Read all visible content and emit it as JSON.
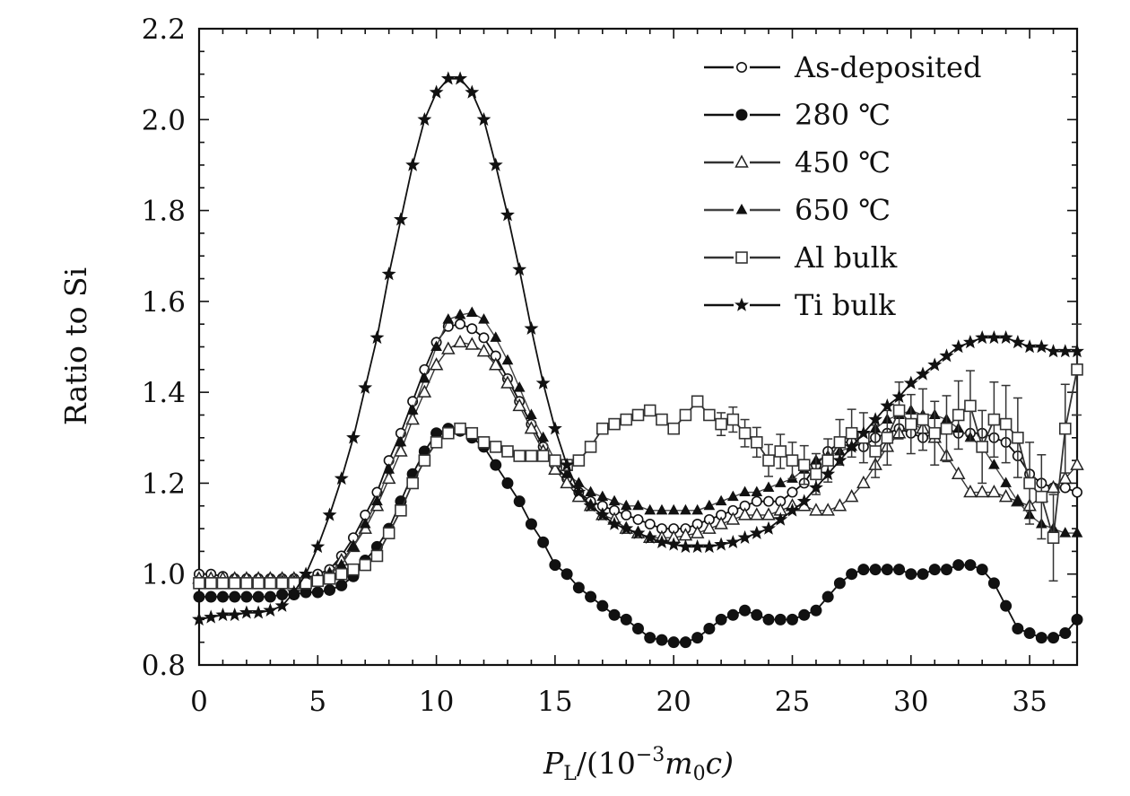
{
  "chart_data": {
    "type": "line",
    "title": "",
    "xlabel": "P_L/(10^-3 m0 c)",
    "xlabel_parts": {
      "main": "P",
      "sub": "L",
      "mid": "/(10",
      "sup": "−3",
      "var": "m",
      "sub2": "0",
      "tail": "c)"
    },
    "ylabel": "Ratio to Si",
    "xlim": [
      0,
      37
    ],
    "ylim": [
      0.8,
      2.2
    ],
    "xticks": [
      0,
      5,
      10,
      15,
      20,
      25,
      30,
      35
    ],
    "yticks": [
      "0.8",
      "1.0",
      "1.2",
      "1.4",
      "1.6",
      "1.8",
      "2.0",
      "2.2"
    ],
    "grid": false,
    "legend_position": "top-right",
    "series": [
      {
        "name": "As-deposited",
        "marker": "circle-open",
        "x": [
          0,
          0.5,
          1,
          1.5,
          2,
          2.5,
          3,
          3.5,
          4,
          4.5,
          5,
          5.5,
          6,
          6.5,
          7,
          7.5,
          8,
          8.5,
          9,
          9.5,
          10,
          10.5,
          11,
          11.5,
          12,
          12.5,
          13,
          13.5,
          14,
          14.5,
          15,
          15.5,
          16,
          16.5,
          17,
          17.5,
          18,
          18.5,
          19,
          19.5,
          20,
          20.5,
          21,
          21.5,
          22,
          22.5,
          23,
          23.5,
          24,
          24.5,
          25,
          25.5,
          26,
          26.5,
          27,
          27.5,
          28,
          28.5,
          29,
          29.5,
          30,
          30.5,
          31,
          31.5,
          32,
          32.5,
          33,
          33.5,
          34,
          34.5,
          35,
          35.5,
          36,
          36.5,
          37
        ],
        "y": [
          1.0,
          1.0,
          0.995,
          0.99,
          0.99,
          0.99,
          0.99,
          0.99,
          0.99,
          0.99,
          1.0,
          1.01,
          1.04,
          1.08,
          1.13,
          1.18,
          1.25,
          1.31,
          1.38,
          1.45,
          1.51,
          1.545,
          1.55,
          1.54,
          1.52,
          1.48,
          1.43,
          1.38,
          1.33,
          1.28,
          1.24,
          1.21,
          1.18,
          1.16,
          1.15,
          1.14,
          1.13,
          1.12,
          1.11,
          1.1,
          1.1,
          1.1,
          1.11,
          1.12,
          1.13,
          1.14,
          1.15,
          1.16,
          1.16,
          1.16,
          1.18,
          1.2,
          1.24,
          1.27,
          1.29,
          1.29,
          1.28,
          1.3,
          1.31,
          1.32,
          1.31,
          1.3,
          1.31,
          1.32,
          1.31,
          1.31,
          1.31,
          1.3,
          1.29,
          1.26,
          1.22,
          1.2,
          1.19,
          1.19,
          1.18
        ]
      },
      {
        "name": "280 ℃",
        "marker": "circle-filled",
        "x": [
          0,
          0.5,
          1,
          1.5,
          2,
          2.5,
          3,
          3.5,
          4,
          4.5,
          5,
          5.5,
          6,
          6.5,
          7,
          7.5,
          8,
          8.5,
          9,
          9.5,
          10,
          10.5,
          11,
          11.5,
          12,
          12.5,
          13,
          13.5,
          14,
          14.5,
          15,
          15.5,
          16,
          16.5,
          17,
          17.5,
          18,
          18.5,
          19,
          19.5,
          20,
          20.5,
          21,
          21.5,
          22,
          22.5,
          23,
          23.5,
          24,
          24.5,
          25,
          25.5,
          26,
          26.5,
          27,
          27.5,
          28,
          28.5,
          29,
          29.5,
          30,
          30.5,
          31,
          31.5,
          32,
          32.5,
          33,
          33.5,
          34,
          34.5,
          35,
          35.5,
          36,
          36.5,
          37
        ],
        "y": [
          0.95,
          0.95,
          0.95,
          0.95,
          0.95,
          0.95,
          0.95,
          0.955,
          0.955,
          0.96,
          0.96,
          0.965,
          0.975,
          0.995,
          1.03,
          1.06,
          1.1,
          1.16,
          1.22,
          1.27,
          1.31,
          1.32,
          1.315,
          1.3,
          1.28,
          1.24,
          1.2,
          1.16,
          1.11,
          1.07,
          1.02,
          1.0,
          0.97,
          0.95,
          0.93,
          0.91,
          0.9,
          0.88,
          0.86,
          0.855,
          0.85,
          0.85,
          0.86,
          0.88,
          0.9,
          0.91,
          0.92,
          0.91,
          0.9,
          0.9,
          0.9,
          0.91,
          0.92,
          0.95,
          0.98,
          1.0,
          1.01,
          1.01,
          1.01,
          1.01,
          1.0,
          1.0,
          1.01,
          1.01,
          1.02,
          1.02,
          1.01,
          0.98,
          0.93,
          0.88,
          0.87,
          0.86,
          0.86,
          0.87,
          0.9
        ]
      },
      {
        "name": "450 ℃",
        "marker": "triangle-open",
        "x": [
          0,
          0.5,
          1,
          1.5,
          2,
          2.5,
          3,
          3.5,
          4,
          4.5,
          5,
          5.5,
          6,
          6.5,
          7,
          7.5,
          8,
          8.5,
          9,
          9.5,
          10,
          10.5,
          11,
          11.5,
          12,
          12.5,
          13,
          13.5,
          14,
          14.5,
          15,
          15.5,
          16,
          16.5,
          17,
          17.5,
          18,
          18.5,
          19,
          19.5,
          20,
          20.5,
          21,
          21.5,
          22,
          22.5,
          23,
          23.5,
          24,
          24.5,
          25,
          25.5,
          26,
          26.5,
          27,
          27.5,
          28,
          28.5,
          29,
          29.5,
          30,
          30.5,
          31,
          31.5,
          32,
          32.5,
          33,
          33.5,
          34,
          34.5,
          35,
          35.5,
          36,
          36.5,
          37
        ],
        "y": [
          0.99,
          0.99,
          0.99,
          0.99,
          0.99,
          0.99,
          0.99,
          0.99,
          0.99,
          0.99,
          0.99,
          1.0,
          1.03,
          1.06,
          1.1,
          1.15,
          1.21,
          1.27,
          1.34,
          1.4,
          1.46,
          1.495,
          1.51,
          1.505,
          1.49,
          1.46,
          1.42,
          1.37,
          1.32,
          1.27,
          1.23,
          1.2,
          1.17,
          1.15,
          1.13,
          1.12,
          1.1,
          1.09,
          1.08,
          1.08,
          1.08,
          1.085,
          1.09,
          1.1,
          1.11,
          1.12,
          1.13,
          1.13,
          1.13,
          1.14,
          1.15,
          1.15,
          1.14,
          1.14,
          1.15,
          1.17,
          1.2,
          1.24,
          1.28,
          1.31,
          1.33,
          1.32,
          1.3,
          1.26,
          1.22,
          1.18,
          1.18,
          1.18,
          1.17,
          1.16,
          1.15,
          1.17,
          1.19,
          1.21,
          1.24
        ]
      },
      {
        "name": "650 ℃",
        "marker": "triangle-filled",
        "x": [
          0,
          0.5,
          1,
          1.5,
          2,
          2.5,
          3,
          3.5,
          4,
          4.5,
          5,
          5.5,
          6,
          6.5,
          7,
          7.5,
          8,
          8.5,
          9,
          9.5,
          10,
          10.5,
          11,
          11.5,
          12,
          12.5,
          13,
          13.5,
          14,
          14.5,
          15,
          15.5,
          16,
          16.5,
          17,
          17.5,
          18,
          18.5,
          19,
          19.5,
          20,
          20.5,
          21,
          21.5,
          22,
          22.5,
          23,
          23.5,
          24,
          24.5,
          25,
          25.5,
          26,
          26.5,
          27,
          27.5,
          28,
          28.5,
          29,
          29.5,
          30,
          30.5,
          31,
          31.5,
          32,
          32.5,
          33,
          33.5,
          34,
          34.5,
          35,
          35.5,
          36,
          36.5,
          37
        ],
        "y": [
          0.98,
          0.98,
          0.98,
          0.98,
          0.98,
          0.98,
          0.98,
          0.985,
          0.985,
          0.99,
          0.99,
          1.0,
          1.02,
          1.06,
          1.11,
          1.16,
          1.23,
          1.29,
          1.36,
          1.43,
          1.5,
          1.56,
          1.57,
          1.575,
          1.56,
          1.52,
          1.47,
          1.41,
          1.35,
          1.3,
          1.25,
          1.22,
          1.2,
          1.18,
          1.17,
          1.16,
          1.15,
          1.15,
          1.14,
          1.14,
          1.14,
          1.14,
          1.14,
          1.15,
          1.16,
          1.17,
          1.18,
          1.18,
          1.19,
          1.2,
          1.21,
          1.23,
          1.25,
          1.26,
          1.27,
          1.28,
          1.3,
          1.32,
          1.34,
          1.35,
          1.36,
          1.35,
          1.35,
          1.34,
          1.32,
          1.3,
          1.28,
          1.24,
          1.2,
          1.16,
          1.13,
          1.11,
          1.1,
          1.09,
          1.09
        ]
      },
      {
        "name": "Al bulk",
        "marker": "square-open",
        "x": [
          0,
          0.5,
          1,
          1.5,
          2,
          2.5,
          3,
          3.5,
          4,
          4.5,
          5,
          5.5,
          6,
          6.5,
          7,
          7.5,
          8,
          8.5,
          9,
          9.5,
          10,
          10.5,
          11,
          11.5,
          12,
          12.5,
          13,
          13.5,
          14,
          14.5,
          15,
          15.5,
          16,
          16.5,
          17,
          17.5,
          18,
          18.5,
          19,
          19.5,
          20,
          20.5,
          21,
          21.5,
          22,
          22.5,
          23,
          23.5,
          24,
          24.5,
          25,
          25.5,
          26,
          26.5,
          27,
          27.5,
          28,
          28.5,
          29,
          29.5,
          30,
          30.5,
          31,
          31.5,
          32,
          32.5,
          33,
          33.5,
          34,
          34.5,
          35,
          35.5,
          36,
          36.5,
          37
        ],
        "y": [
          0.98,
          0.98,
          0.98,
          0.98,
          0.98,
          0.98,
          0.98,
          0.98,
          0.98,
          0.98,
          0.985,
          0.99,
          1.0,
          1.01,
          1.02,
          1.04,
          1.09,
          1.14,
          1.2,
          1.25,
          1.29,
          1.31,
          1.32,
          1.31,
          1.29,
          1.28,
          1.27,
          1.26,
          1.26,
          1.26,
          1.25,
          1.24,
          1.25,
          1.28,
          1.32,
          1.33,
          1.34,
          1.35,
          1.36,
          1.34,
          1.32,
          1.35,
          1.38,
          1.35,
          1.33,
          1.34,
          1.31,
          1.29,
          1.25,
          1.27,
          1.25,
          1.24,
          1.22,
          1.25,
          1.29,
          1.31,
          1.3,
          1.27,
          1.3,
          1.36,
          1.33,
          1.34,
          1.31,
          1.32,
          1.35,
          1.37,
          1.28,
          1.34,
          1.33,
          1.3,
          1.2,
          1.17,
          1.08,
          1.32,
          1.45
        ],
        "error_bars": true
      },
      {
        "name": "Ti bulk",
        "marker": "star-filled",
        "x": [
          0,
          0.5,
          1,
          1.5,
          2,
          2.5,
          3,
          3.5,
          4,
          4.5,
          5,
          5.5,
          6,
          6.5,
          7,
          7.5,
          8,
          8.5,
          9,
          9.5,
          10,
          10.5,
          11,
          11.5,
          12,
          12.5,
          13,
          13.5,
          14,
          14.5,
          15,
          15.5,
          16,
          16.5,
          17,
          17.5,
          18,
          18.5,
          19,
          19.5,
          20,
          20.5,
          21,
          21.5,
          22,
          22.5,
          23,
          23.5,
          24,
          24.5,
          25,
          25.5,
          26,
          26.5,
          27,
          27.5,
          28,
          28.5,
          29,
          29.5,
          30,
          30.5,
          31,
          31.5,
          32,
          32.5,
          33,
          33.5,
          34,
          34.5,
          35,
          35.5,
          36,
          36.5,
          37
        ],
        "y": [
          0.9,
          0.905,
          0.91,
          0.91,
          0.915,
          0.915,
          0.92,
          0.93,
          0.96,
          1.0,
          1.06,
          1.13,
          1.21,
          1.3,
          1.41,
          1.52,
          1.66,
          1.78,
          1.9,
          2.0,
          2.06,
          2.09,
          2.09,
          2.06,
          2.0,
          1.9,
          1.79,
          1.67,
          1.54,
          1.42,
          1.32,
          1.24,
          1.18,
          1.15,
          1.13,
          1.11,
          1.1,
          1.09,
          1.08,
          1.07,
          1.065,
          1.06,
          1.06,
          1.06,
          1.065,
          1.07,
          1.08,
          1.09,
          1.1,
          1.12,
          1.14,
          1.16,
          1.19,
          1.22,
          1.25,
          1.28,
          1.31,
          1.34,
          1.37,
          1.39,
          1.42,
          1.44,
          1.46,
          1.48,
          1.5,
          1.51,
          1.52,
          1.52,
          1.52,
          1.51,
          1.5,
          1.5,
          1.49,
          1.49,
          1.49
        ]
      }
    ]
  }
}
